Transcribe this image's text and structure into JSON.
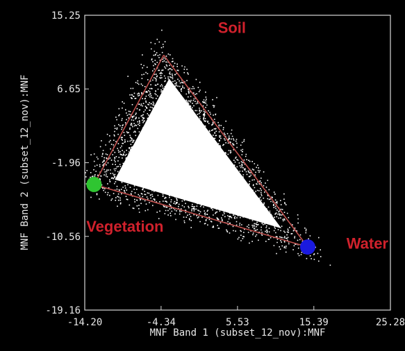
{
  "chart_data": {
    "type": "scatter",
    "title": "",
    "xlabel": "MNF Band 1 (subset_12_nov):MNF",
    "ylabel": "MNF Band 2 (subset_12_nov):MNF",
    "xlim": [
      -14.2,
      25.28
    ],
    "ylim": [
      -19.16,
      15.25
    ],
    "x_ticks": [
      "-14.20",
      "-4.34",
      "5.53",
      "15.39",
      "25.28"
    ],
    "y_ticks": [
      "15.25",
      "6.65",
      "-1.96",
      "-10.56",
      "-19.16"
    ],
    "grid": false,
    "background": "#000000",
    "point_color": "#ffffff",
    "hull_color": "#c0504d",
    "endmembers": [
      {
        "label": "Soil",
        "x": -4.0,
        "y": 10.6,
        "marker_color": null
      },
      {
        "label": "Vegetation",
        "x": -13.0,
        "y": -4.5,
        "marker_color": "#2fc531"
      },
      {
        "label": "Water",
        "x": 14.6,
        "y": -11.8,
        "marker_color": "#1a1adf"
      }
    ],
    "region_labels": [
      {
        "text": "Soil",
        "x": 3.0,
        "y": 13.2
      },
      {
        "text": "Vegetation",
        "x": -14.0,
        "y": -10.0
      },
      {
        "text": "Water",
        "x": 19.6,
        "y": -12.0
      }
    ]
  }
}
